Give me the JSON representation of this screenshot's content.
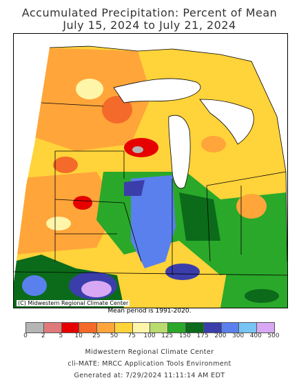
{
  "title_line1": "Accumulated Precipitation: Percent of Mean",
  "title_line2": "July 15, 2024 to July 21, 2024",
  "map": {
    "copyright": "(C) Midwestern Regional Climate Center"
  },
  "mean_period": "Mean period is 1991-2020.",
  "legend": {
    "labels": [
      "0",
      "2",
      "5",
      "10",
      "25",
      "50",
      "75",
      "100",
      "125",
      "150",
      "175",
      "200",
      "300",
      "400",
      "500"
    ],
    "colors": [
      "#b5b5b5",
      "#e07a7a",
      "#e60000",
      "#f46a2a",
      "#ffa53a",
      "#ffd33a",
      "#fff5a8",
      "#b8dc6e",
      "#2aa82a",
      "#0b6b1a",
      "#3b3eaa",
      "#5a80ee",
      "#78c4f2",
      "#d8a8f4"
    ]
  },
  "footer": {
    "line1": "Midwestern Regional Climate Center",
    "line2": "cli-MATE: MRCC Application Tools Environment",
    "line3": "Generated at: 7/29/2024 11:11:14 AM EDT"
  }
}
